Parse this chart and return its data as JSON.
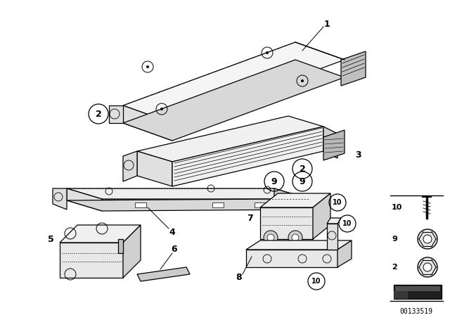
{
  "bg_color": "#ffffff",
  "watermark": "00133519",
  "fig_w": 6.4,
  "fig_h": 4.48,
  "dpi": 100
}
